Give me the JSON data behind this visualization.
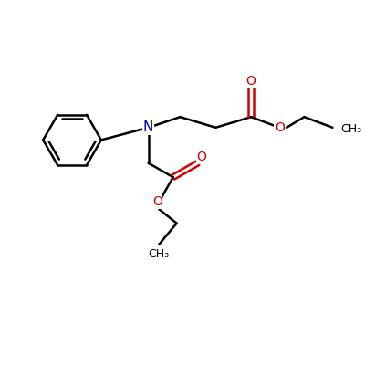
{
  "background_color": "#ffffff",
  "bond_color": "#000000",
  "nitrogen_color": "#0000cc",
  "oxygen_color": "#cc0000",
  "line_width": 1.8,
  "font_size": 10,
  "fig_width": 4.0,
  "fig_height": 4.0,
  "xlim": [
    0,
    10
  ],
  "ylim": [
    0,
    10
  ]
}
